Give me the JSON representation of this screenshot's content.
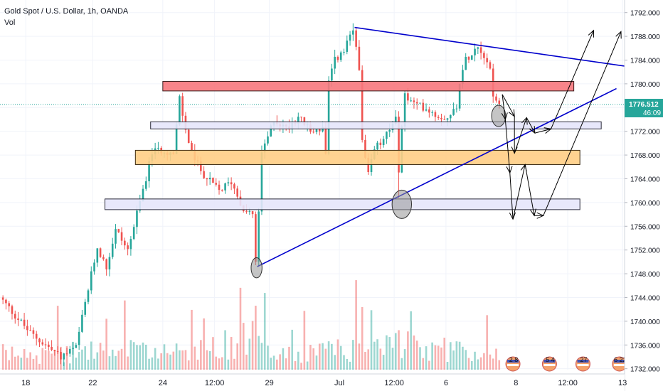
{
  "chart_data": {
    "type": "candlestick",
    "title": "Gold Spot / U.S. Dollar, 1h, OANDA",
    "indicator": "Vol",
    "ylim": [
      1731,
      1794
    ],
    "y_ticks": [
      1732,
      1736,
      1740,
      1744,
      1748,
      1752,
      1756,
      1760,
      1764,
      1768,
      1772,
      1776,
      1780,
      1784,
      1788,
      1792
    ],
    "y_tick_labels": [
      "1732.000",
      "1736.000",
      "1740.000",
      "1744.000",
      "1748.000",
      "1752.000",
      "1756.000",
      "1760.000",
      "1764.000",
      "1768.000",
      "1772.000",
      "1776.000",
      "1780.000",
      "1784.000",
      "1788.000",
      "1792.000"
    ],
    "x_ticks": [
      {
        "label": "18",
        "bar": 8
      },
      {
        "label": "22",
        "bar": 30
      },
      {
        "label": "24",
        "bar": 53
      },
      {
        "label": "12:00",
        "bar": 70
      },
      {
        "label": "29",
        "bar": 88
      },
      {
        "label": "Jul",
        "bar": 111
      },
      {
        "label": "12:00",
        "bar": 129
      },
      {
        "label": "6",
        "bar": 146
      },
      {
        "label": "8",
        "bar": 169
      },
      {
        "label": "12:00",
        "bar": 186
      },
      {
        "label": "13",
        "bar": 204
      }
    ],
    "last_price": "1776.512",
    "countdown": "46:09",
    "last_price_value": 1776.512,
    "colors": {
      "up": "#26a69a",
      "down": "#ef5350",
      "trend": "#0000cc",
      "grid": "#f0f3fa"
    },
    "zones": [
      {
        "name": "resistance-red",
        "x0": 53,
        "x1": 188,
        "y0": 1778.8,
        "y1": 1780.4,
        "fill": "#f7787d",
        "stroke": "#3a1a1a"
      },
      {
        "name": "zone-lavender-upper",
        "x0": 49,
        "x1": 197,
        "y0": 1772.4,
        "y1": 1773.6,
        "fill": "#e6e6fb",
        "stroke": "#2a2a3a"
      },
      {
        "name": "zone-orange",
        "x0": 44,
        "x1": 190,
        "y0": 1766.4,
        "y1": 1768.8,
        "fill": "#ffce85",
        "stroke": "#3a2a10"
      },
      {
        "name": "zone-lavender-lower",
        "x0": 34,
        "x1": 190,
        "y0": 1758.8,
        "y1": 1760.6,
        "fill": "#e6e6fb",
        "stroke": "#2a2a3a"
      }
    ],
    "trendlines": [
      {
        "name": "upper-trendline",
        "x0": 116,
        "y0": 1789.5,
        "x1": 214,
        "y1": 1782.3
      },
      {
        "name": "lower-trendline",
        "x0": 84,
        "y0": 1749.2,
        "x1": 202,
        "y1": 1779.2
      }
    ],
    "ellipses": [
      {
        "name": "low-circle",
        "x": 83.8,
        "y": 1749.0,
        "rx": 1.8,
        "ry": 1.7
      },
      {
        "name": "mid-circle",
        "x": 131.5,
        "y": 1759.7,
        "rx": 3.2,
        "ry": 2.4
      },
      {
        "name": "current-circle",
        "x": 163.3,
        "y": 1774.6,
        "rx": 2.3,
        "ry": 1.8
      }
    ],
    "arrows": [
      [
        [
          164.5,
          1778.2
        ],
        [
          168.5,
          1774.5
        ],
        [
          168.5,
          1768.3
        ],
        [
          172.5,
          1774.3
        ],
        [
          175.2,
          1771.7
        ],
        [
          180.5,
          1772.4
        ],
        [
          194.5,
          1789.0
        ]
      ],
      [
        [
          164.5,
          1778.2
        ],
        [
          165.5,
          1774.0
        ],
        [
          167.0,
          1765.0
        ],
        [
          168.0,
          1757.2
        ],
        [
          172.0,
          1766.4
        ],
        [
          175.0,
          1757.8
        ],
        [
          178.0,
          1757.8
        ],
        [
          203.5,
          1788.8
        ]
      ]
    ],
    "anchors": [
      [
        0,
        1744.0
      ],
      [
        10,
        1738.0
      ],
      [
        20,
        1734.0
      ],
      [
        25,
        1735.5
      ],
      [
        28,
        1743.0
      ],
      [
        32,
        1752.5
      ],
      [
        35,
        1749.0
      ],
      [
        38,
        1755.5
      ],
      [
        42,
        1752.0
      ],
      [
        46,
        1760.0
      ],
      [
        50,
        1768.5
      ],
      [
        54,
        1769.0
      ],
      [
        57,
        1768.0
      ],
      [
        59,
        1777.5
      ],
      [
        61,
        1772.0
      ],
      [
        64,
        1767.0
      ],
      [
        68,
        1764.0
      ],
      [
        72,
        1762.0
      ],
      [
        76,
        1763.5
      ],
      [
        80,
        1759.0
      ],
      [
        83,
        1758.0
      ],
      [
        84,
        1749.5
      ],
      [
        86,
        1768.0
      ],
      [
        90,
        1774.0
      ],
      [
        94,
        1772.5
      ],
      [
        98,
        1774.5
      ],
      [
        102,
        1772.0
      ],
      [
        106,
        1772.5
      ],
      [
        107,
        1768.0
      ],
      [
        108,
        1780.0
      ],
      [
        110,
        1784.0
      ],
      [
        113,
        1785.5
      ],
      [
        116,
        1789.0
      ],
      [
        118,
        1783.0
      ],
      [
        119,
        1770.0
      ],
      [
        121,
        1764.5
      ],
      [
        123,
        1769.0
      ],
      [
        125,
        1770.0
      ],
      [
        128,
        1772.0
      ],
      [
        130,
        1775.0
      ],
      [
        130.5,
        1761.0
      ],
      [
        132,
        1773.0
      ],
      [
        133,
        1778.0
      ],
      [
        136,
        1776.5
      ],
      [
        140,
        1776.0
      ],
      [
        144,
        1774.5
      ],
      [
        148,
        1774.5
      ],
      [
        150,
        1776.5
      ],
      [
        151,
        1780.5
      ],
      [
        153,
        1784.0
      ],
      [
        155,
        1785.5
      ],
      [
        157,
        1786.5
      ],
      [
        159,
        1785.0
      ],
      [
        161,
        1782.5
      ],
      [
        162,
        1778.5
      ],
      [
        163,
        1776.5
      ],
      [
        163.6,
        1776.5
      ]
    ],
    "vol_anchors": [
      [
        0,
        1
      ],
      [
        20,
        1
      ],
      [
        30,
        1.3
      ],
      [
        60,
        1
      ],
      [
        84,
        2.2
      ],
      [
        90,
        1
      ],
      [
        118,
        1.4
      ],
      [
        131,
        1.6
      ],
      [
        163,
        1
      ]
    ]
  },
  "badges": [
    {
      "name": "events-badge-1",
      "bar": 168,
      "text": "2 8"
    },
    {
      "name": "events-badge-2",
      "bar": 180,
      "text": "5 4"
    },
    {
      "name": "events-badge-3",
      "bar": 191,
      "text": "27"
    },
    {
      "name": "events-badge-4",
      "bar": 203,
      "text": "6 22"
    }
  ]
}
